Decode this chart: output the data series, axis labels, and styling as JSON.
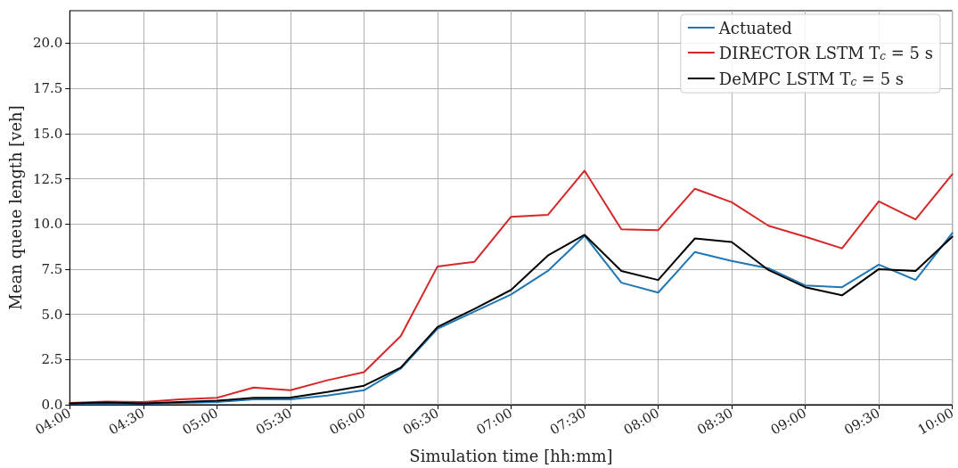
{
  "chart_data": {
    "type": "line",
    "xlabel": "Simulation time [hh:mm]",
    "ylabel": "Mean queue length [veh]",
    "x": [
      4,
      4.25,
      4.5,
      4.75,
      5,
      5.25,
      5.5,
      5.75,
      6,
      6.25,
      6.5,
      6.75,
      7,
      7.25,
      7.5,
      7.75,
      8,
      8.25,
      8.5,
      8.75,
      9,
      9.25,
      9.5,
      9.75,
      10
    ],
    "series": [
      {
        "name": "Actuated",
        "color": "#1f77b4",
        "values": [
          0.05,
          0.08,
          0.05,
          0.1,
          0.15,
          0.3,
          0.3,
          0.5,
          0.8,
          2.0,
          4.2,
          5.15,
          6.1,
          7.4,
          9.35,
          6.75,
          6.2,
          8.45,
          7.95,
          7.55,
          6.6,
          6.5,
          7.75,
          6.9,
          9.5
        ]
      },
      {
        "name": "DIRECTOR LSTM T$_{c}$ = 5 s",
        "color": "#d62728",
        "values": [
          0.1,
          0.17,
          0.15,
          0.3,
          0.38,
          0.95,
          0.8,
          1.35,
          1.8,
          3.8,
          7.65,
          7.9,
          10.4,
          10.5,
          12.95,
          9.7,
          9.65,
          11.95,
          11.2,
          9.9,
          9.3,
          8.65,
          11.25,
          10.25,
          12.75
        ]
      },
      {
        "name": "DeMPC LSTM T$_{c}$ = 5 s",
        "color": "#000000",
        "values": [
          0.08,
          0.12,
          0.08,
          0.15,
          0.22,
          0.38,
          0.4,
          0.7,
          1.05,
          2.05,
          4.3,
          5.3,
          6.35,
          8.25,
          9.4,
          7.4,
          6.9,
          9.2,
          9.0,
          7.45,
          6.5,
          6.05,
          7.5,
          7.4,
          9.3
        ]
      }
    ],
    "xlim": [
      4,
      10
    ],
    "xticks": [
      {
        "value": 4,
        "label": "04:00"
      },
      {
        "value": 4.5,
        "label": "04:30"
      },
      {
        "value": 5,
        "label": "05:00"
      },
      {
        "value": 5.5,
        "label": "05:30"
      },
      {
        "value": 6,
        "label": "06:00"
      },
      {
        "value": 6.5,
        "label": "06:30"
      },
      {
        "value": 7,
        "label": "07:00"
      },
      {
        "value": 7.5,
        "label": "07:30"
      },
      {
        "value": 8,
        "label": "08:00"
      },
      {
        "value": 8.5,
        "label": "08:30"
      },
      {
        "value": 9,
        "label": "09:00"
      },
      {
        "value": 9.5,
        "label": "09:30"
      },
      {
        "value": 10,
        "label": "10:00"
      }
    ],
    "ylim": [
      0,
      21.8
    ],
    "yticks": [
      {
        "value": 0,
        "label": "0.0"
      },
      {
        "value": 2.5,
        "label": "2.5"
      },
      {
        "value": 5,
        "label": "5.0"
      },
      {
        "value": 7.5,
        "label": "7.5"
      },
      {
        "value": 10,
        "label": "10.0"
      },
      {
        "value": 12.5,
        "label": "12.5"
      },
      {
        "value": 15,
        "label": "15.0"
      },
      {
        "value": 17.5,
        "label": "17.5"
      },
      {
        "value": 20,
        "label": "20.0"
      }
    ],
    "grid": true,
    "legend": "top right",
    "marker": "none",
    "line_style": "solid"
  }
}
